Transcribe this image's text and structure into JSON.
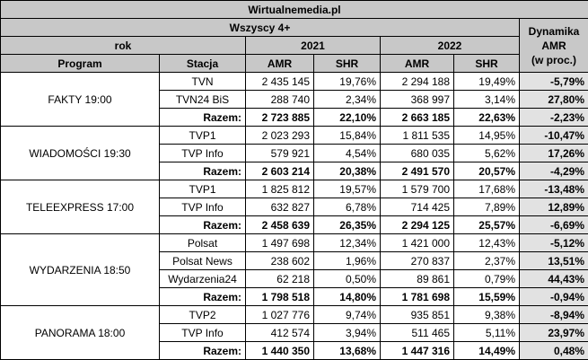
{
  "site": "Wirtualnemedia.pl",
  "audience": "Wszyscy 4+",
  "year_label": "rok",
  "years": [
    "2021",
    "2022"
  ],
  "dynamics_header": [
    "Dynamika",
    "AMR",
    "(w proc.)"
  ],
  "col_program": "Program",
  "col_station": "Stacja",
  "col_amr": "AMR",
  "col_shr": "SHR",
  "groups": [
    {
      "program": "FAKTY 19:00",
      "rows": [
        {
          "station": "TVN",
          "amr2021": "2 435 145",
          "shr2021": "19,76%",
          "amr2022": "2 294 188",
          "shr2022": "19,49%",
          "dyn": "-5,79%"
        },
        {
          "station": "TVN24 BiS",
          "amr2021": "288 740",
          "shr2021": "2,34%",
          "amr2022": "368 997",
          "shr2022": "3,14%",
          "dyn": "27,80%"
        },
        {
          "station": "Razem:",
          "amr2021": "2 723 885",
          "shr2021": "22,10%",
          "amr2022": "2 663 185",
          "shr2022": "22,63%",
          "dyn": "-2,23%",
          "total": true
        }
      ]
    },
    {
      "program": "WIADOMOŚCI 19:30",
      "rows": [
        {
          "station": "TVP1",
          "amr2021": "2 023 293",
          "shr2021": "15,84%",
          "amr2022": "1 811 535",
          "shr2022": "14,95%",
          "dyn": "-10,47%"
        },
        {
          "station": "TVP Info",
          "amr2021": "579 921",
          "shr2021": "4,54%",
          "amr2022": "680 035",
          "shr2022": "5,62%",
          "dyn": "17,26%"
        },
        {
          "station": "Razem:",
          "amr2021": "2 603 214",
          "shr2021": "20,38%",
          "amr2022": "2 491 570",
          "shr2022": "20,57%",
          "dyn": "-4,29%",
          "total": true
        }
      ]
    },
    {
      "program": "TELEEXPRESS 17:00",
      "rows": [
        {
          "station": "TVP1",
          "amr2021": "1 825 812",
          "shr2021": "19,57%",
          "amr2022": "1 579 700",
          "shr2022": "17,68%",
          "dyn": "-13,48%"
        },
        {
          "station": "TVP Info",
          "amr2021": "632 827",
          "shr2021": "6,78%",
          "amr2022": "714 425",
          "shr2022": "7,89%",
          "dyn": "12,89%"
        },
        {
          "station": "Razem:",
          "amr2021": "2 458 639",
          "shr2021": "26,35%",
          "amr2022": "2 294 125",
          "shr2022": "25,57%",
          "dyn": "-6,69%",
          "total": true
        }
      ]
    },
    {
      "program": "WYDARZENIA 18:50",
      "rows": [
        {
          "station": "Polsat",
          "amr2021": "1 497 698",
          "shr2021": "12,34%",
          "amr2022": "1 421 000",
          "shr2022": "12,43%",
          "dyn": "-5,12%"
        },
        {
          "station": "Polsat News",
          "amr2021": "238 602",
          "shr2021": "1,96%",
          "amr2022": "270 837",
          "shr2022": "2,37%",
          "dyn": "13,51%"
        },
        {
          "station": "Wydarzenia24",
          "amr2021": "62 218",
          "shr2021": "0,50%",
          "amr2022": "89 861",
          "shr2022": "0,79%",
          "dyn": "44,43%"
        },
        {
          "station": "Razem:",
          "amr2021": "1 798 518",
          "shr2021": "14,80%",
          "amr2022": "1 781 698",
          "shr2022": "15,59%",
          "dyn": "-0,94%",
          "total": true
        }
      ]
    },
    {
      "program": "PANORAMA 18:00",
      "rows": [
        {
          "station": "TVP2",
          "amr2021": "1 027 776",
          "shr2021": "9,74%",
          "amr2022": "935 851",
          "shr2022": "9,38%",
          "dyn": "-8,94%"
        },
        {
          "station": "TVP Info",
          "amr2021": "412 574",
          "shr2021": "3,94%",
          "amr2022": "511 465",
          "shr2022": "5,11%",
          "dyn": "23,97%"
        },
        {
          "station": "Razem:",
          "amr2021": "1 440 350",
          "shr2021": "13,68%",
          "amr2022": "1 447 316",
          "shr2022": "14,49%",
          "dyn": "0,48%",
          "total": true
        }
      ]
    }
  ]
}
